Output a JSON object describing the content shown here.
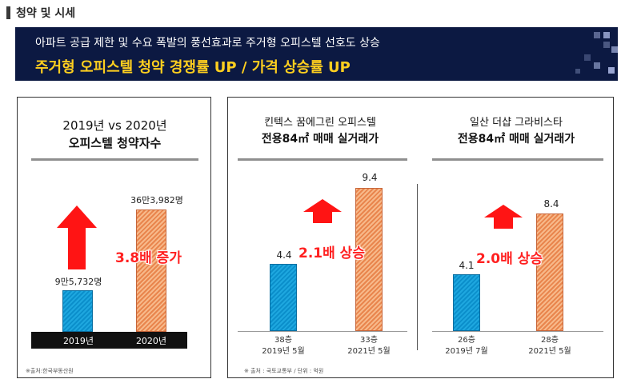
{
  "section_title": "청약 및 시세",
  "banner": {
    "line1": "아파트 공급 제한 및 수요 폭발의 풍선효과로 주거형 오피스텔 선호도 상승",
    "line2": "주거형 오피스텔 청약 경쟁률 UP / 가격 상승률 UP"
  },
  "colors": {
    "banner_bg": "#0c1942",
    "accent_yellow": "#ffcf1f",
    "growth_red": "#ff2020",
    "bar_blue": "#0b8fcb",
    "bar_orange": "#e9854d"
  },
  "chart_data": [
    {
      "type": "bar",
      "title": "2019년 vs 2020년",
      "subtitle": "오피스텔 청약자수",
      "categories": [
        "2019년",
        "2020년"
      ],
      "values": [
        95732,
        363982
      ],
      "value_labels": [
        "9만5,732명",
        "36만3,982명"
      ],
      "annotation": "3.8배 증가",
      "note": "※출처:한국부동산원"
    },
    {
      "type": "bar",
      "title": "킨텍스 꿈에그린 오피스텔",
      "subtitle": "전용84㎡ 매매 실거래가",
      "categories": [
        [
          "38층",
          "2019년 5월"
        ],
        [
          "33층",
          "2021년 5월"
        ]
      ],
      "values": [
        4.4,
        9.4
      ],
      "value_labels": [
        "4.4",
        "9.4"
      ],
      "annotation": "2.1배 상승",
      "note": "※ 출처 : 국토교통부 / 단위 : 억원"
    },
    {
      "type": "bar",
      "title": "일산 더샵 그라비스타",
      "subtitle": "전용84㎡ 매매 실거래가",
      "categories": [
        [
          "26층",
          "2019년 7월"
        ],
        [
          "28층",
          "2021년 5월"
        ]
      ],
      "values": [
        4.1,
        8.4
      ],
      "value_labels": [
        "4.1",
        "8.4"
      ],
      "annotation": "2.0배 상승"
    }
  ]
}
